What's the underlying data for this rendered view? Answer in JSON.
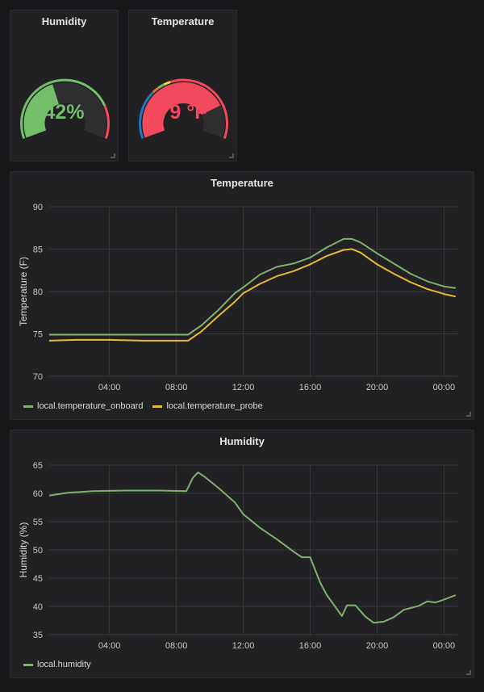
{
  "gauges": {
    "humidity": {
      "title": "Humidity",
      "value_text": "42%",
      "value": 42,
      "min": 0,
      "max": 100,
      "color": "#73bf69",
      "threshold_color": "#f2495c"
    },
    "temperature": {
      "title": "Temperature",
      "value_text": "79 °F",
      "value": 79,
      "min": 0,
      "max": 100,
      "color": "#f2495c",
      "threshold_colors": [
        "#1f78c1",
        "#1f78c1",
        "#e0752d",
        "#73bf69",
        "#fade2a",
        "#f2495c"
      ]
    }
  },
  "chart_data": [
    {
      "type": "line",
      "title": "Temperature",
      "xlabel": "",
      "ylabel": "Temperature (F)",
      "ylim": [
        70,
        90
      ],
      "yticks": [
        "70",
        "75",
        "80",
        "85",
        "90"
      ],
      "xlim": [
        0.4,
        24.8
      ],
      "xticks": [
        {
          "v": 4,
          "label": "04:00"
        },
        {
          "v": 8,
          "label": "08:00"
        },
        {
          "v": 12,
          "label": "12:00"
        },
        {
          "v": 16,
          "label": "16:00"
        },
        {
          "v": 20,
          "label": "20:00"
        },
        {
          "v": 24,
          "label": "00:00"
        }
      ],
      "series": [
        {
          "name": "local.temperature_onboard",
          "color": "#7eb26d",
          "x": [
            0.4,
            2,
            4,
            6,
            8,
            8.7,
            9.5,
            10.5,
            11.5,
            12,
            13,
            14,
            15,
            16,
            17,
            18,
            18.5,
            19,
            20,
            21,
            22,
            23,
            24,
            24.7
          ],
          "values": [
            74.9,
            74.9,
            74.9,
            74.9,
            74.9,
            74.9,
            76,
            77.8,
            79.8,
            80.5,
            82,
            82.9,
            83.3,
            84,
            85.2,
            86.2,
            86.2,
            85.8,
            84.5,
            83.3,
            82.1,
            81.2,
            80.6,
            80.4
          ]
        },
        {
          "name": "local.temperature_probe",
          "color": "#eab839",
          "x": [
            0.4,
            2,
            4,
            6,
            8,
            8.7,
            9.5,
            10.5,
            11.5,
            12,
            13,
            14,
            15,
            16,
            17,
            18,
            18.5,
            19,
            20,
            21,
            22,
            23,
            24,
            24.7
          ],
          "values": [
            74.2,
            74.3,
            74.3,
            74.2,
            74.2,
            74.2,
            75.3,
            77.1,
            78.8,
            79.8,
            80.9,
            81.8,
            82.4,
            83.2,
            84.2,
            84.9,
            85,
            84.6,
            83.2,
            82.1,
            81.1,
            80.3,
            79.7,
            79.4
          ]
        }
      ]
    },
    {
      "type": "line",
      "title": "Humidity",
      "xlabel": "",
      "ylabel": "Humidity (%)",
      "ylim": [
        35,
        65
      ],
      "yticks": [
        "35",
        "40",
        "45",
        "50",
        "55",
        "60",
        "65"
      ],
      "xlim": [
        0.4,
        24.8
      ],
      "xticks": [
        {
          "v": 4,
          "label": "04:00"
        },
        {
          "v": 8,
          "label": "08:00"
        },
        {
          "v": 12,
          "label": "12:00"
        },
        {
          "v": 16,
          "label": "16:00"
        },
        {
          "v": 20,
          "label": "20:00"
        },
        {
          "v": 24,
          "label": "00:00"
        }
      ],
      "series": [
        {
          "name": "local.humidity",
          "color": "#7eb26d",
          "x": [
            0.4,
            1.5,
            3,
            5,
            7,
            8.6,
            9,
            9.3,
            9.7,
            10.5,
            11.5,
            12,
            13,
            14,
            15,
            15.5,
            16,
            16.6,
            17,
            17.9,
            18.2,
            18.7,
            19.3,
            19.8,
            20.4,
            21,
            21.6,
            22.5,
            23,
            23.5,
            24,
            24.7
          ],
          "values": [
            59.6,
            60.1,
            60.4,
            60.5,
            60.5,
            60.4,
            62.8,
            63.7,
            62.9,
            61,
            58.4,
            56.3,
            53.9,
            51.9,
            49.7,
            48.7,
            48.7,
            44.2,
            42,
            38.3,
            40.2,
            40.2,
            38.2,
            37.1,
            37.3,
            38.1,
            39.4,
            40.1,
            40.9,
            40.7,
            41.2,
            42
          ]
        }
      ]
    }
  ]
}
